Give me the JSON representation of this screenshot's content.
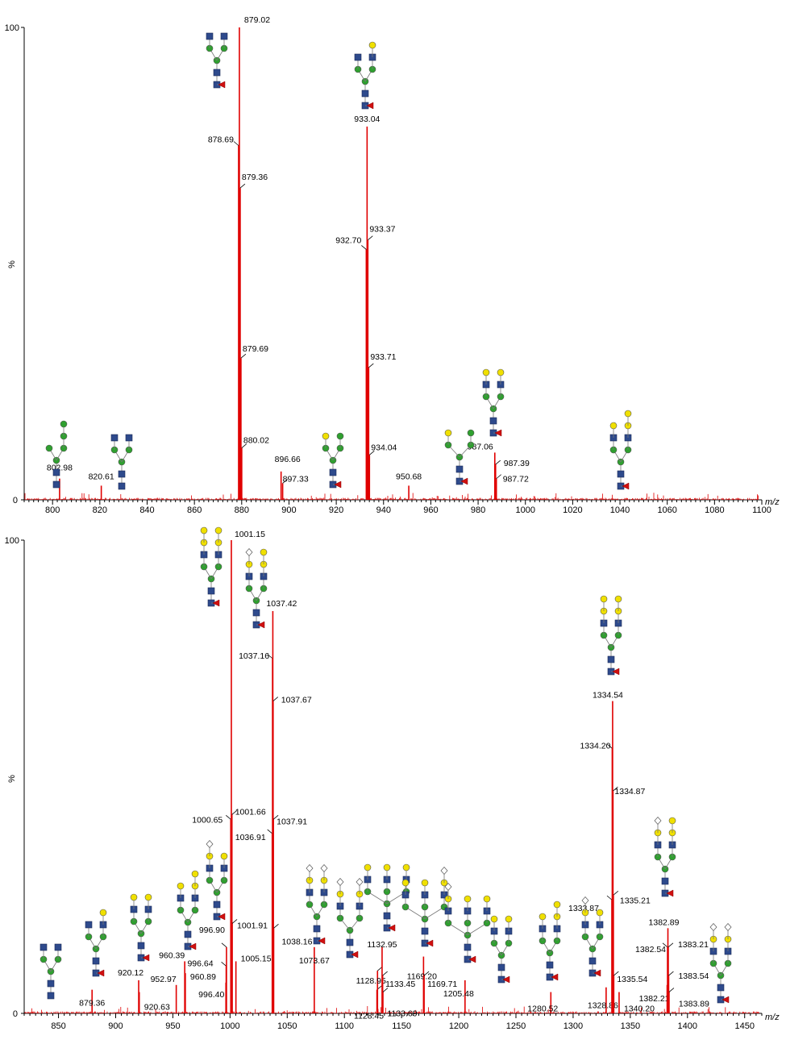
{
  "chart_data": [
    {
      "type": "line",
      "x_unit_label": "m/z",
      "y_axis_label": "%",
      "y_ticks": [
        "0",
        "100"
      ],
      "xlim": [
        788,
        1100
      ],
      "ylim": [
        0,
        100
      ],
      "x_ticks": [
        800,
        820,
        840,
        860,
        880,
        900,
        920,
        940,
        960,
        980,
        1000,
        1020,
        1040,
        1060,
        1080,
        1100
      ],
      "peaks": [
        {
          "x": 802.98,
          "y": 4.5,
          "label": "802.98"
        },
        {
          "x": 820.61,
          "y": 3.0,
          "label": "820.61"
        },
        {
          "x": 878.69,
          "y": 75,
          "label": "878.69"
        },
        {
          "x": 879.02,
          "y": 100,
          "label": "879.02"
        },
        {
          "x": 879.36,
          "y": 66,
          "label": "879.36"
        },
        {
          "x": 879.69,
          "y": 30,
          "label": "879.69"
        },
        {
          "x": 880.02,
          "y": 11,
          "label": "880.02"
        },
        {
          "x": 896.66,
          "y": 6,
          "label": "896.66"
        },
        {
          "x": 897.33,
          "y": 3.5,
          "label": "897.33"
        },
        {
          "x": 932.7,
          "y": 53,
          "label": "932.70"
        },
        {
          "x": 933.04,
          "y": 79,
          "label": "933.04"
        },
        {
          "x": 933.37,
          "y": 55,
          "label": "933.37"
        },
        {
          "x": 933.71,
          "y": 28,
          "label": "933.71"
        },
        {
          "x": 934.04,
          "y": 9.5,
          "label": "934.04"
        },
        {
          "x": 950.68,
          "y": 3.0,
          "label": "950.68"
        },
        {
          "x": 987.06,
          "y": 10,
          "label": "987.06"
        },
        {
          "x": 987.39,
          "y": 7.5,
          "label": "987.39"
        },
        {
          "x": 987.72,
          "y": 4.5,
          "label": "987.72"
        }
      ]
    },
    {
      "type": "line",
      "x_unit_label": "m/z",
      "y_axis_label": "%",
      "y_ticks": [
        "0",
        "100"
      ],
      "xlim": [
        820,
        1465
      ],
      "ylim": [
        0,
        100
      ],
      "x_ticks": [
        850,
        900,
        950,
        1000,
        1050,
        1100,
        1150,
        1200,
        1250,
        1300,
        1350,
        1400,
        1450
      ],
      "peaks": [
        {
          "x": 879.36,
          "y": 5,
          "label": "879.36"
        },
        {
          "x": 920.12,
          "y": 7,
          "label": "920.12"
        },
        {
          "x": 920.63,
          "y": 4.5,
          "label": "920.63"
        },
        {
          "x": 952.97,
          "y": 6,
          "label": "952.97"
        },
        {
          "x": 960.39,
          "y": 11,
          "label": "960.39"
        },
        {
          "x": 960.89,
          "y": 8.5,
          "label": "960.89"
        },
        {
          "x": 996.4,
          "y": 6.5,
          "label": "996.40"
        },
        {
          "x": 996.64,
          "y": 10,
          "label": "996.64"
        },
        {
          "x": 996.9,
          "y": 14,
          "label": "996.90"
        },
        {
          "x": 1000.65,
          "y": 41,
          "label": "1000.65"
        },
        {
          "x": 1001.15,
          "y": 100,
          "label": "1001.15"
        },
        {
          "x": 1001.66,
          "y": 42,
          "label": "1001.66"
        },
        {
          "x": 1001.91,
          "y": 19,
          "label": "1001.91"
        },
        {
          "x": 1005.15,
          "y": 11,
          "label": "1005.15"
        },
        {
          "x": 1036.91,
          "y": 38,
          "label": "1036.91"
        },
        {
          "x": 1037.16,
          "y": 75,
          "label": "1037.16"
        },
        {
          "x": 1037.42,
          "y": 85,
          "label": "1037.42"
        },
        {
          "x": 1037.67,
          "y": 66,
          "label": "1037.67"
        },
        {
          "x": 1037.91,
          "y": 41,
          "label": "1037.91"
        },
        {
          "x": 1038.16,
          "y": 18,
          "label": "1038.16"
        },
        {
          "x": 1073.67,
          "y": 14,
          "label": "1073.67"
        },
        {
          "x": 1128.45,
          "y": 5,
          "label": "1128.45"
        },
        {
          "x": 1128.95,
          "y": 9,
          "label": "1128.95"
        },
        {
          "x": 1132.95,
          "y": 14,
          "label": "1132.95"
        },
        {
          "x": 1133.45,
          "y": 8,
          "label": "1133.45"
        },
        {
          "x": 1133.69,
          "y": 4.5,
          "label": "1133.69"
        },
        {
          "x": 1169.2,
          "y": 12,
          "label": "1169.20"
        },
        {
          "x": 1169.71,
          "y": 8,
          "label": "1169.71"
        },
        {
          "x": 1205.48,
          "y": 7,
          "label": "1205.48"
        },
        {
          "x": 1280.52,
          "y": 4.5,
          "label": "1280.52"
        },
        {
          "x": 1328.86,
          "y": 5.5,
          "label": "1328.86"
        },
        {
          "x": 1333.87,
          "y": 24,
          "label": "1333.87"
        },
        {
          "x": 1334.2,
          "y": 56,
          "label": "1334.20"
        },
        {
          "x": 1334.54,
          "y": 66,
          "label": "1334.54"
        },
        {
          "x": 1334.87,
          "y": 47,
          "label": "1334.87"
        },
        {
          "x": 1335.21,
          "y": 25,
          "label": "1335.21"
        },
        {
          "x": 1335.54,
          "y": 8,
          "label": "1335.54"
        },
        {
          "x": 1340.2,
          "y": 4.5,
          "label": "1340.20"
        },
        {
          "x": 1382.21,
          "y": 6,
          "label": "1382.21"
        },
        {
          "x": 1382.54,
          "y": 14,
          "label": "1382.54"
        },
        {
          "x": 1382.89,
          "y": 18,
          "label": "1382.89"
        },
        {
          "x": 1383.21,
          "y": 14,
          "label": "1383.21"
        },
        {
          "x": 1383.54,
          "y": 8,
          "label": "1383.54"
        },
        {
          "x": 1383.89,
          "y": 4.5,
          "label": "1383.89"
        }
      ]
    }
  ],
  "colors": {
    "spectrum": "#e00000",
    "glcnac": "#2e4a8c",
    "mannose": "#2fa02f",
    "galactose": "#f0e000",
    "fucose": "#d01010",
    "neuac": "#ffffff"
  }
}
